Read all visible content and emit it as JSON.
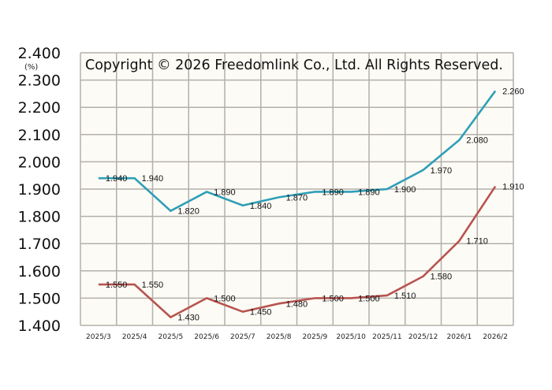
{
  "chart_data": {
    "type": "line",
    "title": "Copyright © 2026 Freedomlink Co., Ltd. All Rights Reserved.",
    "xlabel": "",
    "ylabel": "(%)",
    "ylim": [
      1.4,
      2.4
    ],
    "ytick_step": 0.1,
    "yticks": [
      "1.400",
      "1.500",
      "1.600",
      "1.700",
      "1.800",
      "1.900",
      "2.000",
      "2.100",
      "2.200",
      "2.300",
      "2.400"
    ],
    "grid": true,
    "categories": [
      "2025/3",
      "2025/4",
      "2025/5",
      "2025/6",
      "2025/7",
      "2025/8",
      "2025/9",
      "2025/10",
      "2025/11",
      "2025/12",
      "2026/1",
      "2026/2"
    ],
    "series": [
      {
        "name": "upper",
        "color": "#2f9fb8",
        "values": [
          1.94,
          1.94,
          1.82,
          1.89,
          1.84,
          1.87,
          1.89,
          1.89,
          1.9,
          1.97,
          2.08,
          2.26
        ],
        "labels": [
          "1.940",
          "1.940",
          "1.820",
          "1.890",
          "1.840",
          "1.870",
          "1.890",
          "1.890",
          "1.900",
          "1.970",
          "2.080",
          "2.260"
        ]
      },
      {
        "name": "lower",
        "color": "#b85450",
        "values": [
          1.55,
          1.55,
          1.43,
          1.5,
          1.45,
          1.48,
          1.5,
          1.5,
          1.51,
          1.58,
          1.71,
          1.91
        ],
        "labels": [
          "1.550",
          "1.550",
          "1.430",
          "1.500",
          "1.450",
          "1.480",
          "1.500",
          "1.500",
          "1.510",
          "1.580",
          "1.710",
          "1.910"
        ]
      }
    ],
    "plot_background": "#fdfbf5",
    "grid_color": "#b3b0ab"
  }
}
